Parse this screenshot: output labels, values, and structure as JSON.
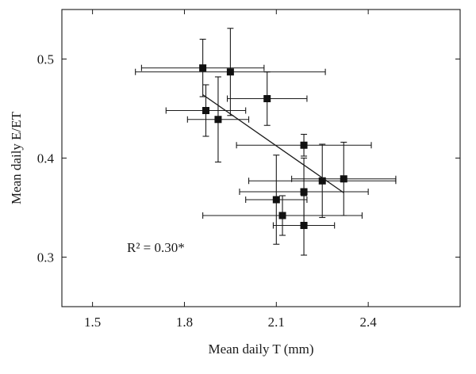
{
  "chart_data": {
    "type": "scatter",
    "xlabel": "Mean daily T (mm)",
    "ylabel": "Mean daily E/ET",
    "xlim": [
      1.4,
      2.7
    ],
    "ylim": [
      0.25,
      0.55
    ],
    "xticks": [
      1.5,
      1.8,
      2.1,
      2.4
    ],
    "yticks": [
      0.3,
      0.4,
      0.5
    ],
    "xtick_labels": [
      "1.5",
      "1.8",
      "2.1",
      "2.4"
    ],
    "ytick_labels": [
      "0.3",
      "0.4",
      "0.5"
    ],
    "grid": false,
    "annotation": "R² = 0.30*",
    "points": [
      {
        "x": 1.86,
        "y": 0.491,
        "xerr": 0.2,
        "yerr": 0.029
      },
      {
        "x": 1.95,
        "y": 0.487,
        "xerr": 0.31,
        "yerr": 0.044
      },
      {
        "x": 2.07,
        "y": 0.46,
        "xerr": 0.13,
        "yerr": 0.027
      },
      {
        "x": 1.87,
        "y": 0.448,
        "xerr": 0.13,
        "yerr": 0.026
      },
      {
        "x": 1.91,
        "y": 0.439,
        "xerr": 0.1,
        "yerr": 0.043
      },
      {
        "x": 2.19,
        "y": 0.413,
        "xerr": 0.22,
        "yerr": 0.011
      },
      {
        "x": 2.32,
        "y": 0.379,
        "xerr": 0.17,
        "yerr": 0.037
      },
      {
        "x": 2.25,
        "y": 0.377,
        "xerr": 0.24,
        "yerr": 0.037
      },
      {
        "x": 2.19,
        "y": 0.366,
        "xerr": 0.21,
        "yerr": 0.034
      },
      {
        "x": 2.1,
        "y": 0.358,
        "xerr": 0.1,
        "yerr": 0.045
      },
      {
        "x": 2.12,
        "y": 0.342,
        "xerr": 0.26,
        "yerr": 0.02
      },
      {
        "x": 2.19,
        "y": 0.332,
        "xerr": 0.1,
        "yerr": 0.03
      }
    ],
    "fit_line": {
      "x": [
        1.86,
        2.32
      ],
      "y": [
        0.464,
        0.365
      ]
    }
  }
}
